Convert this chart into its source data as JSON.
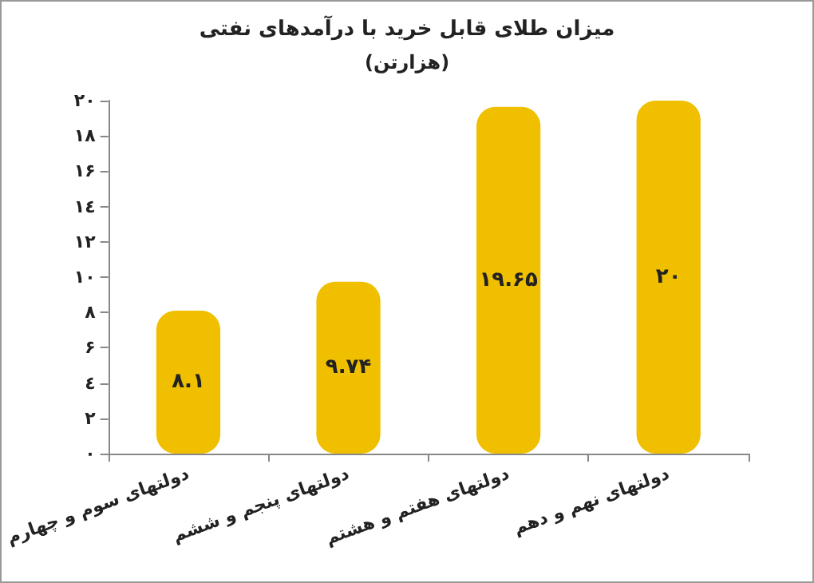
{
  "chart_data": {
    "type": "bar",
    "title": "میزان طلای قابل خرید با درآمدهای نفتی",
    "subtitle": "(هزارتن)",
    "categories": [
      "دولتهای سوم و چهارم",
      "دولتهای پنجم و ششم",
      "دولتهای هفتم و هشتم",
      "دولتهای نهم و دهم"
    ],
    "values": [
      8.1,
      9.74,
      19.65,
      20
    ],
    "color": "#f0bf00",
    "value_labels": [
      "۸.۱",
      "۹.۷۴",
      "۱۹.۶۵",
      "۲۰"
    ],
    "ylim": [
      0,
      20
    ],
    "yticks": [
      {
        "value": 0,
        "label": "۰"
      },
      {
        "value": 2,
        "label": "۲"
      },
      {
        "value": 4,
        "label": "٤"
      },
      {
        "value": 6,
        "label": "۶"
      },
      {
        "value": 8,
        "label": "۸"
      },
      {
        "value": 10,
        "label": "۱۰"
      },
      {
        "value": 12,
        "label": "۱۲"
      },
      {
        "value": 14,
        "label": "١٤"
      },
      {
        "value": 16,
        "label": "۱۶"
      },
      {
        "value": 18,
        "label": "۱۸"
      },
      {
        "value": 20,
        "label": "۲۰"
      }
    ],
    "grid": false
  }
}
